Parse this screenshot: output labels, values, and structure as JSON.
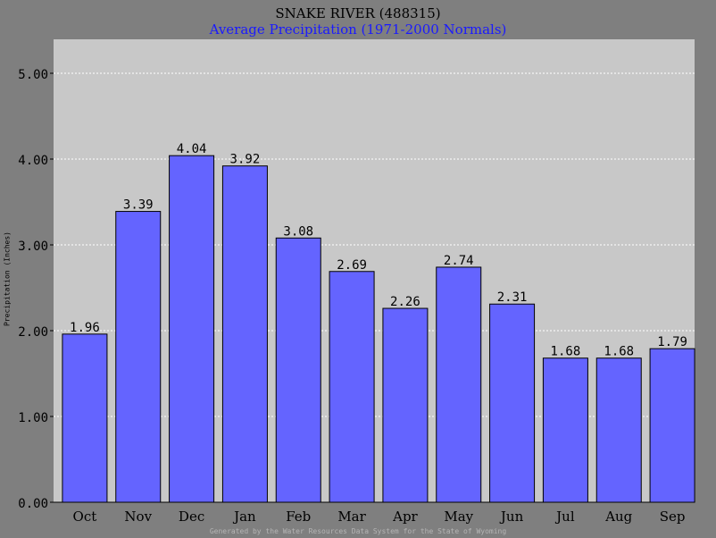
{
  "chart_data": {
    "type": "bar",
    "title": "SNAKE RIVER (488315)",
    "subtitle": "Average Precipitation (1971-2000 Normals)",
    "ylabel": "Precipitation (Inches)",
    "xlabel": "",
    "categories": [
      "Oct",
      "Nov",
      "Dec",
      "Jan",
      "Feb",
      "Mar",
      "Apr",
      "May",
      "Jun",
      "Jul",
      "Aug",
      "Sep"
    ],
    "values": [
      1.96,
      3.39,
      4.04,
      3.92,
      3.08,
      2.69,
      2.26,
      2.74,
      2.31,
      1.68,
      1.68,
      1.79
    ],
    "value_labels": [
      "1.96",
      "3.39",
      "4.04",
      "3.92",
      "3.08",
      "2.69",
      "2.26",
      "2.74",
      "2.31",
      "1.68",
      "1.68",
      "1.79"
    ],
    "ylim": [
      0,
      5.25
    ],
    "yticks": [
      0,
      1,
      2,
      3,
      4,
      5
    ],
    "ytick_labels": [
      "0.00",
      "1.00",
      "2.00",
      "3.00",
      "4.00",
      "5.00"
    ],
    "grid": true,
    "colors": {
      "bar": "#6464ff",
      "plot_background": "#c8c8c8",
      "page_background": "#7f7f7f",
      "subtitle": "#1a1aff",
      "grid": "#ffffff"
    }
  },
  "footer": "Generated by the Water Resources Data System for the State of Wyoming"
}
